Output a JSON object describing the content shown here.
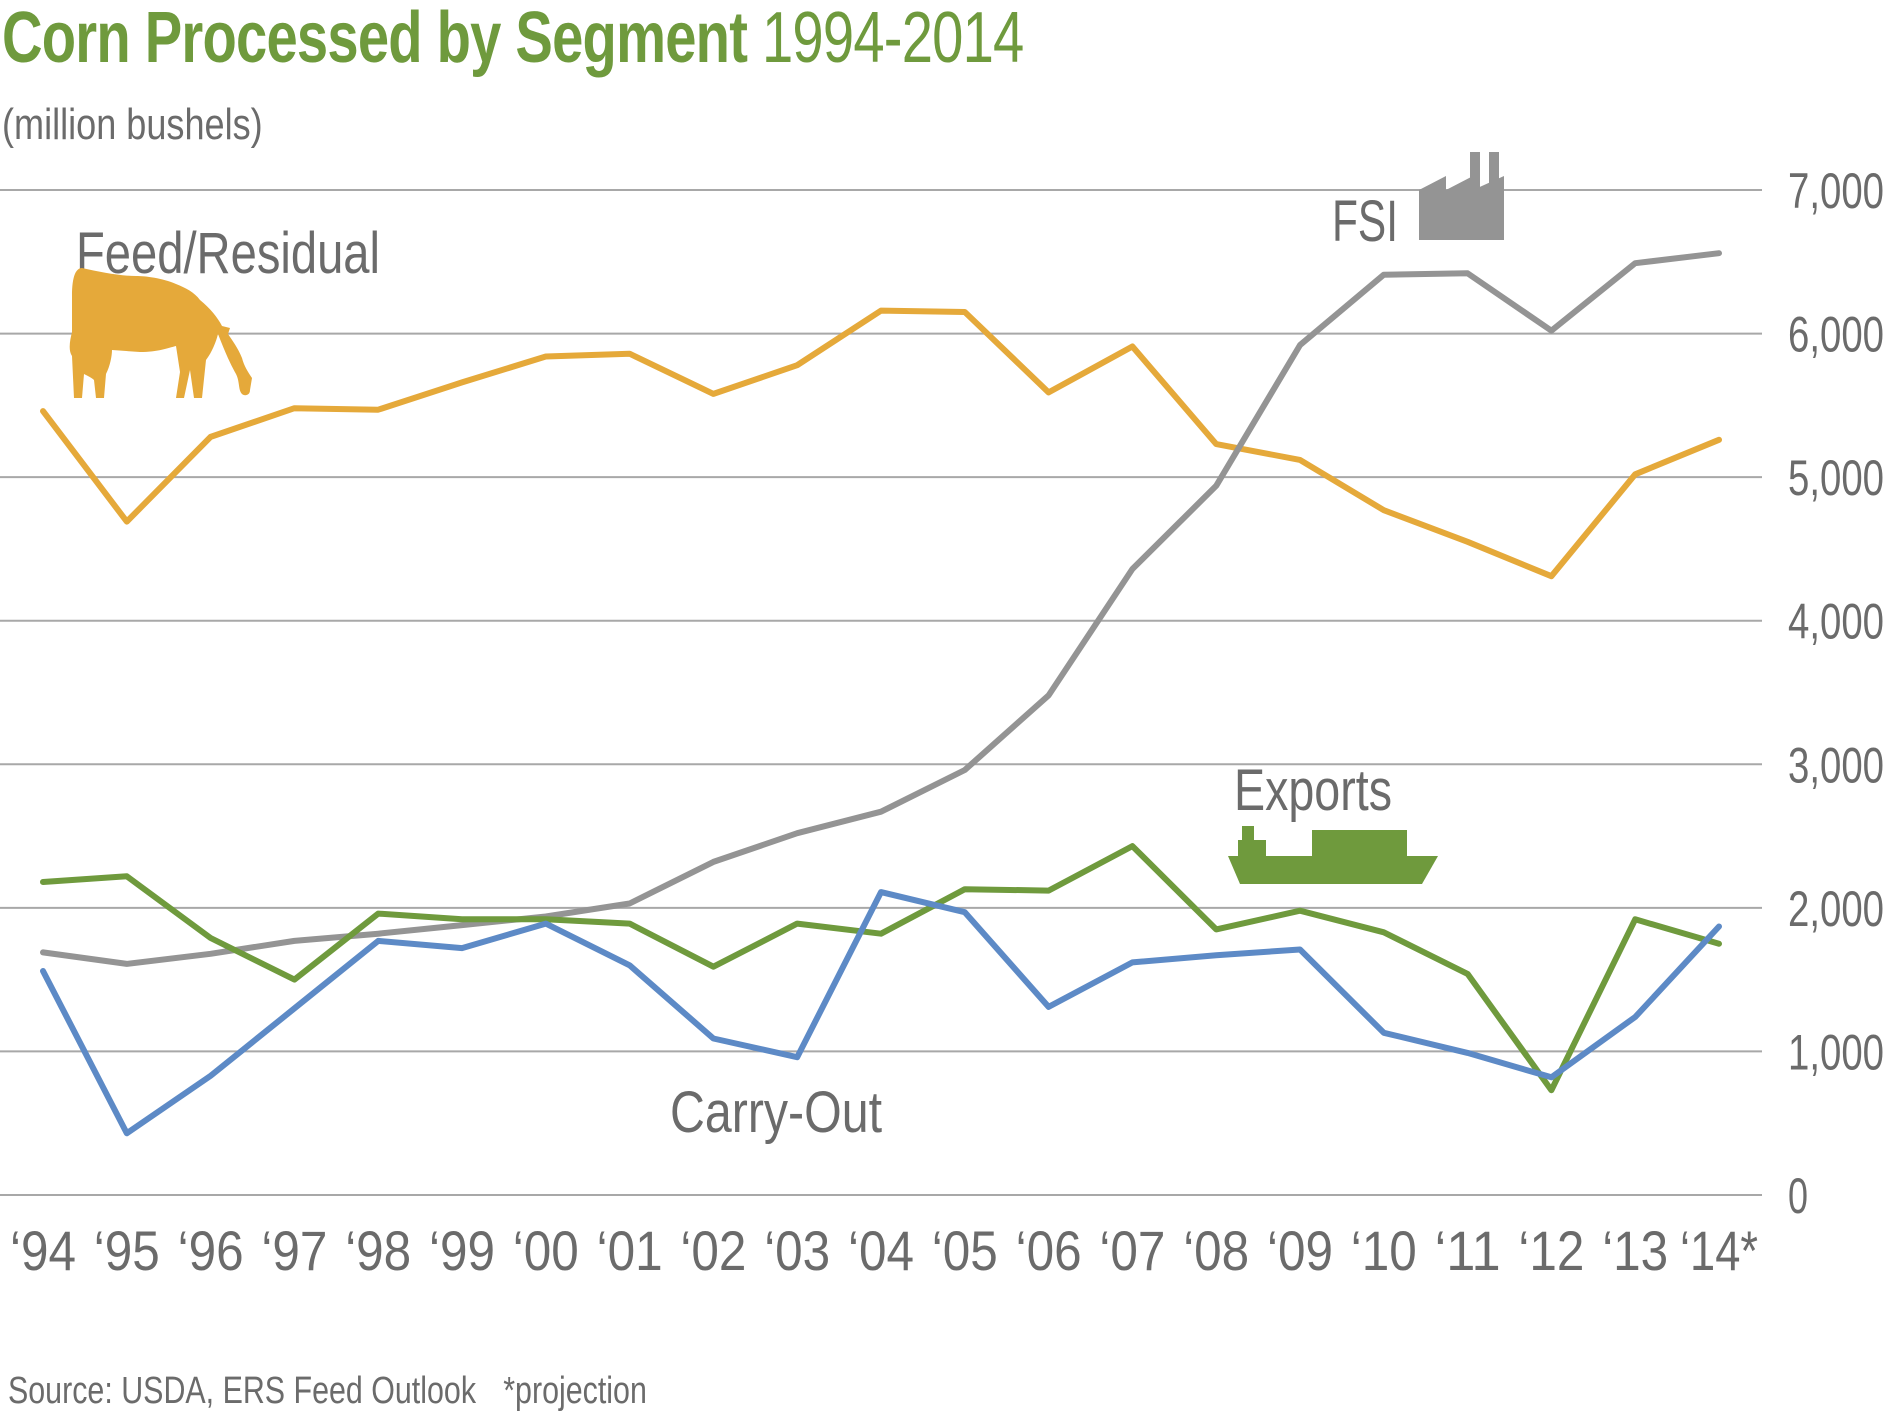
{
  "header": {
    "title_bold": "Corn Processed by Segment",
    "title_light": "1994-2014",
    "subtitle": "(million bushels)"
  },
  "footer": {
    "source": "Source: USDA, ERS Feed Outlook",
    "note": "*projection"
  },
  "icons": {
    "feed": "cow-icon",
    "fsi": "factory-icon",
    "exports": "cargo-ship-icon"
  },
  "chart_data": {
    "type": "line",
    "title": "Corn Processed by Segment 1994-2014",
    "subtitle": "(million bushels)",
    "x": [
      "‘94",
      "‘95",
      "‘96",
      "‘97",
      "‘98",
      "‘99",
      "‘00",
      "‘01",
      "‘02",
      "‘03",
      "‘04",
      "‘05",
      "‘06",
      "‘07",
      "‘08",
      "‘09",
      "‘10",
      "‘11",
      "‘12",
      "‘13",
      "‘14*"
    ],
    "y_ticks": [
      "0",
      "1,000",
      "2,000",
      "3,000",
      "4,000",
      "5,000",
      "6,000",
      "7,000"
    ],
    "ylim": [
      0,
      7000
    ],
    "y_axis_position": "right",
    "grid": true,
    "legend": "direct labels",
    "series": [
      {
        "name": "Feed/Residual",
        "color": "#e5a93a",
        "values": [
          5460,
          4690,
          5280,
          5480,
          5470,
          5660,
          5840,
          5860,
          5580,
          5780,
          6160,
          6150,
          5590,
          5910,
          5230,
          5120,
          4770,
          4550,
          4310,
          5020,
          5260
        ]
      },
      {
        "name": "FSI",
        "color": "#949494",
        "values": [
          1690,
          1610,
          1680,
          1770,
          1820,
          1880,
          1940,
          2030,
          2320,
          2520,
          2670,
          2960,
          3480,
          4360,
          4940,
          5920,
          6410,
          6420,
          6020,
          6490,
          6560
        ]
      },
      {
        "name": "Exports",
        "color": "#6f9a3d",
        "values": [
          2180,
          2220,
          1790,
          1500,
          1960,
          1920,
          1920,
          1890,
          1590,
          1890,
          1820,
          2130,
          2120,
          2430,
          1850,
          1980,
          1830,
          1540,
          730,
          1920,
          1750
        ]
      },
      {
        "name": "Carry-Out",
        "color": "#5d8ac6",
        "values": [
          1560,
          430,
          830,
          1300,
          1770,
          1720,
          1890,
          1600,
          1090,
          960,
          2110,
          1970,
          1310,
          1620,
          1670,
          1710,
          1130,
          990,
          820,
          1240,
          1870
        ]
      }
    ]
  }
}
